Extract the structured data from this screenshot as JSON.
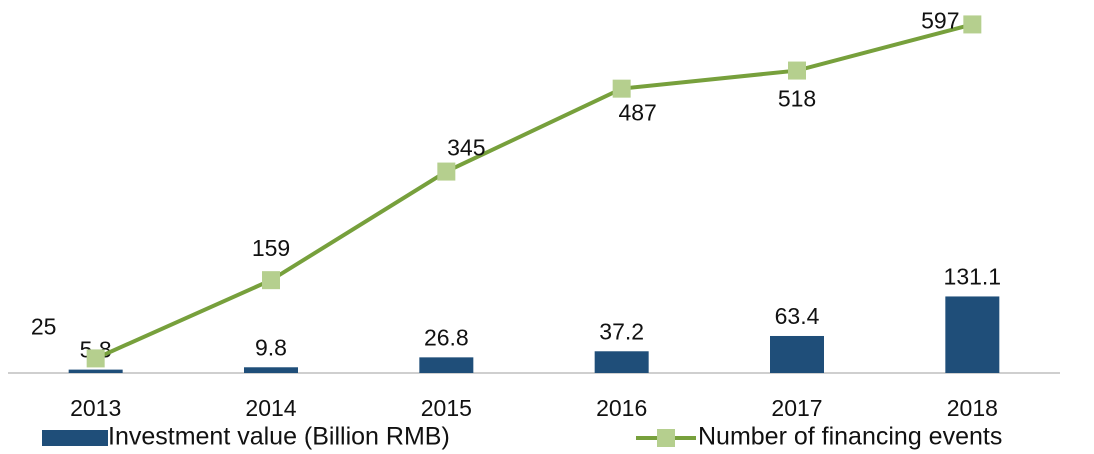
{
  "chart_data": {
    "type": "bar_line",
    "categories": [
      "2013",
      "2014",
      "2015",
      "2016",
      "2017",
      "2018"
    ],
    "series": [
      {
        "name": "Investment value (Billion RMB)",
        "type": "bar",
        "color": "#1f4e79",
        "values": [
          5.8,
          9.8,
          26.8,
          37.2,
          63.4,
          131.1
        ]
      },
      {
        "name": "Number of financing events",
        "type": "line",
        "axis": "y2",
        "color": "#77a03c",
        "marker_color": "#b5cf8e",
        "values": [
          25,
          159,
          345,
          487,
          518,
          597
        ]
      }
    ],
    "ylim": [
      0,
      620
    ],
    "y2lim": [
      0,
      620
    ],
    "legend": "bottom"
  }
}
